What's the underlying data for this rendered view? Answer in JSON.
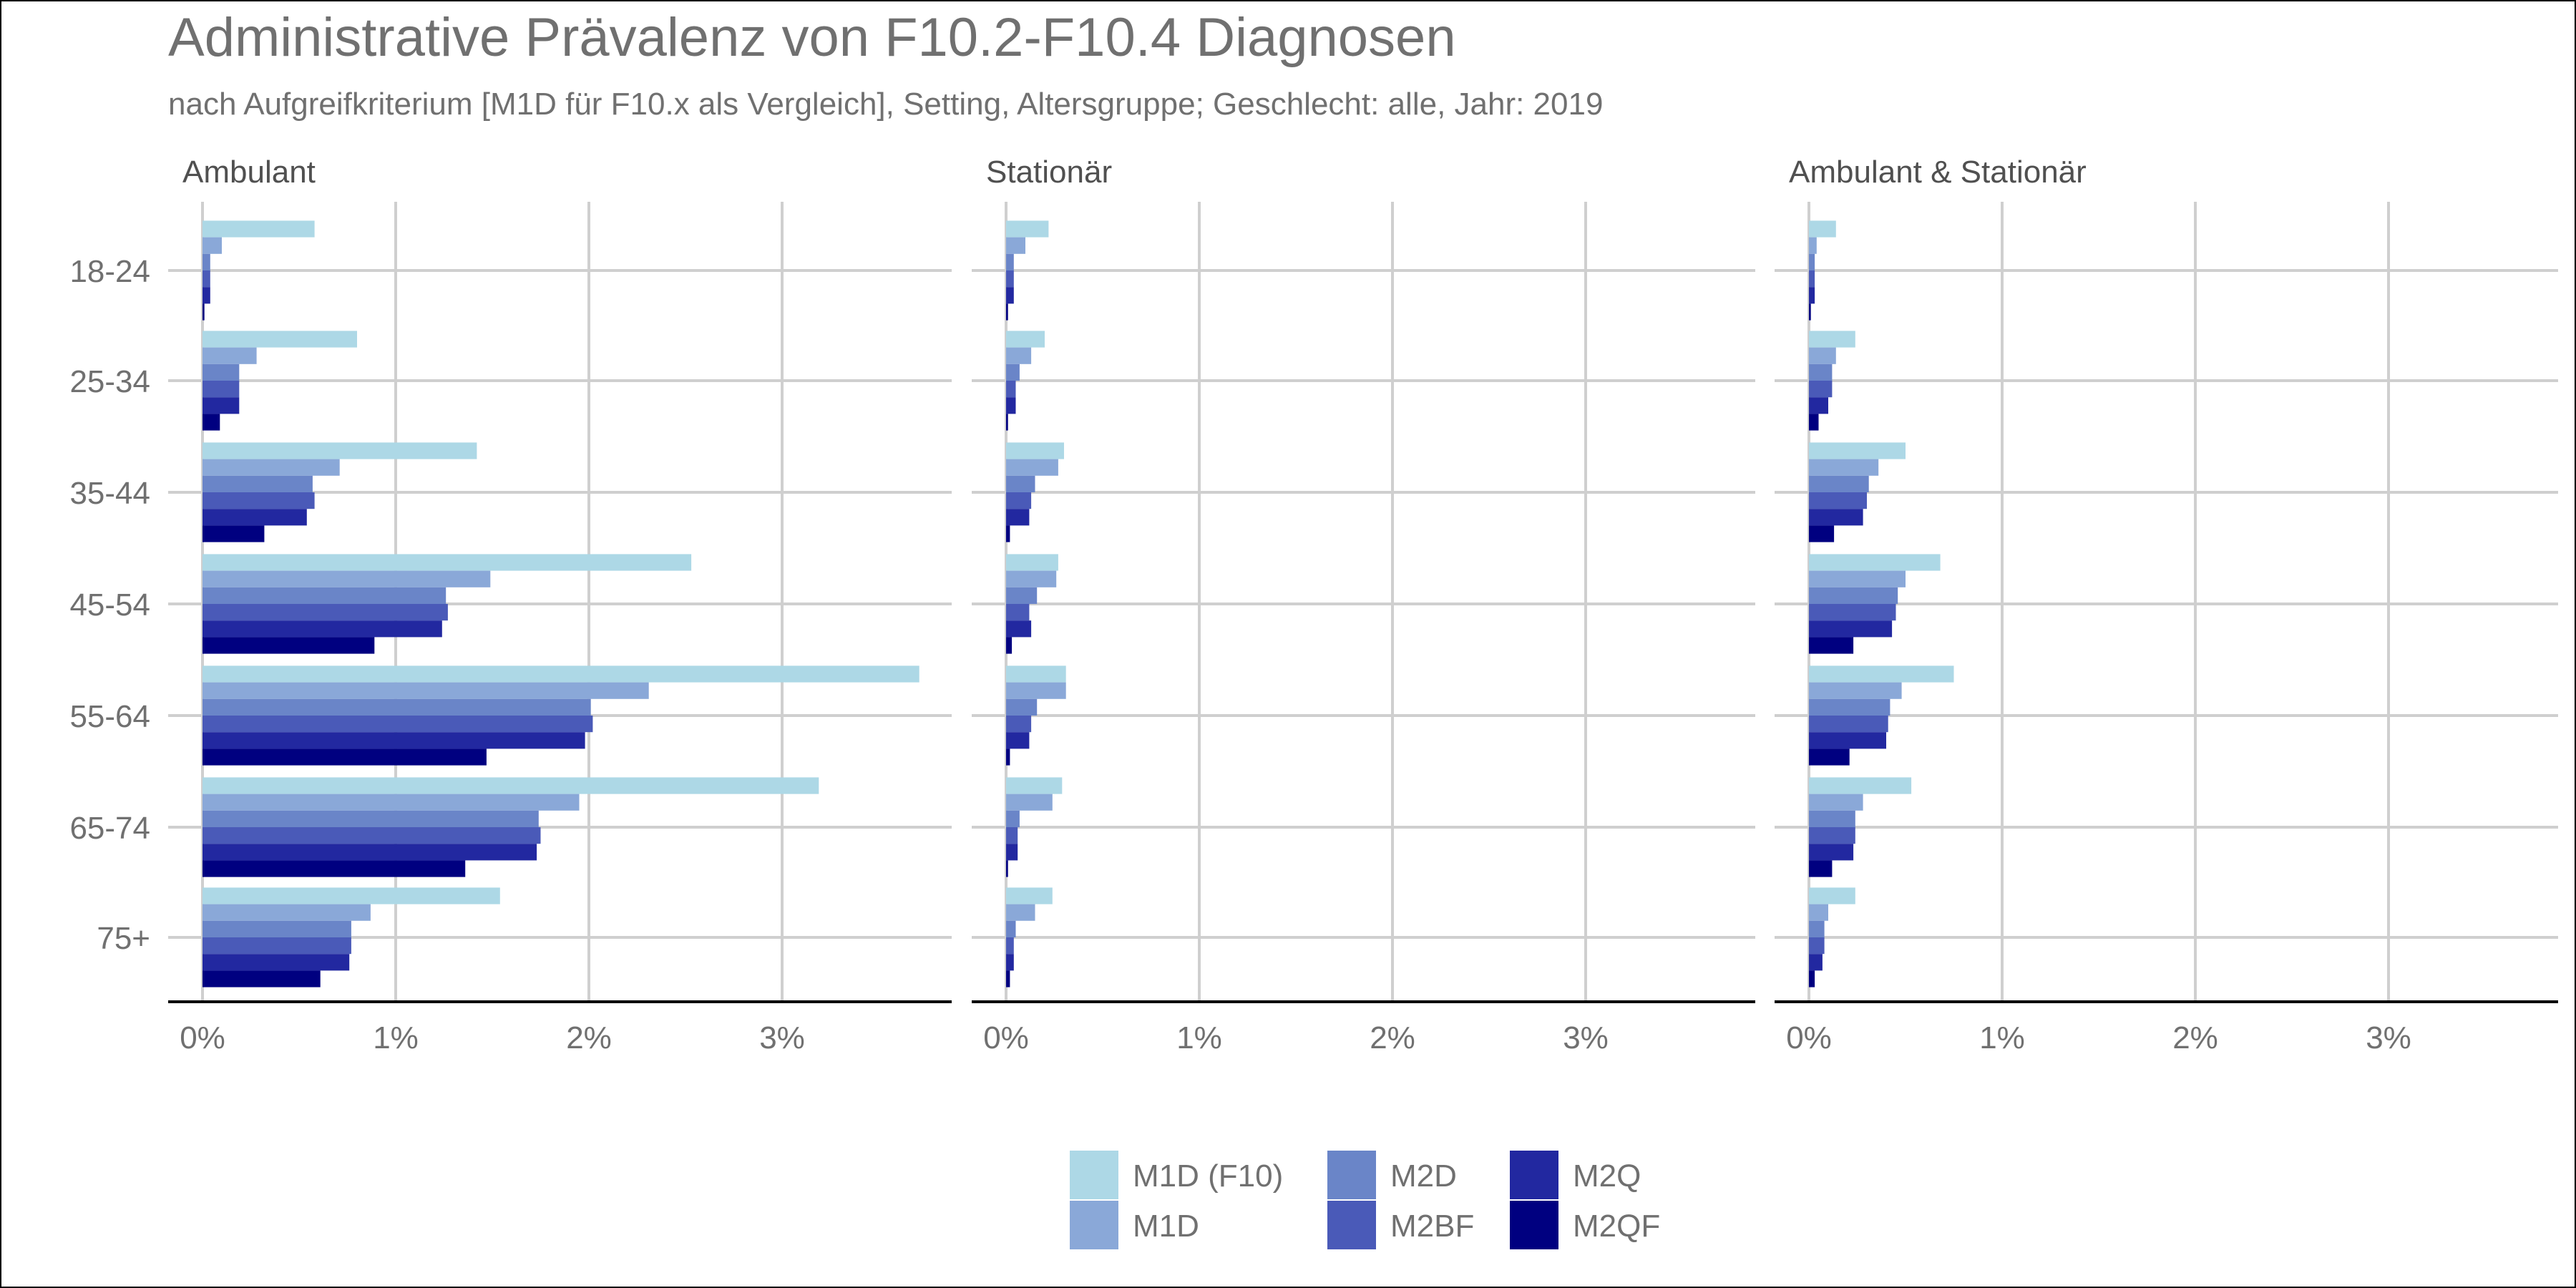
{
  "chart_data": {
    "type": "bar",
    "orientation": "horizontal",
    "title": "Administrative Prävalenz von F10.2-F10.4 Diagnosen",
    "subtitle": "nach Aufgreifkriterium [M1D für F10.x als Vergleich], Setting, Altersgruppe; Geschlecht: alle, Jahr: 2019",
    "x_ticks": [
      "0%",
      "1%",
      "2%",
      "3%"
    ],
    "xlim": [
      0,
      3.9
    ],
    "grid": true,
    "legend_position": "bottom",
    "categories": [
      "18-24",
      "25-34",
      "35-44",
      "45-54",
      "55-64",
      "65-74",
      "75+"
    ],
    "series_names": [
      "M1D (F10)",
      "M1D",
      "M2D",
      "M2BF",
      "M2Q",
      "M2QF"
    ],
    "colors": [
      "#add8e6",
      "#8aa8d8",
      "#6a85c8",
      "#4a5ab8",
      "#2228a0",
      "#000080"
    ],
    "facets": [
      {
        "label": "Ambulant",
        "values": [
          [
            0.58,
            0.1,
            0.04,
            0.04,
            0.04,
            0.01
          ],
          [
            0.8,
            0.28,
            0.19,
            0.19,
            0.19,
            0.09
          ],
          [
            1.42,
            0.71,
            0.57,
            0.58,
            0.54,
            0.32
          ],
          [
            2.53,
            1.49,
            1.26,
            1.27,
            1.24,
            0.89
          ],
          [
            3.71,
            2.31,
            2.01,
            2.02,
            1.98,
            1.47
          ],
          [
            3.19,
            1.95,
            1.74,
            1.75,
            1.73,
            1.36
          ],
          [
            1.54,
            0.87,
            0.77,
            0.77,
            0.76,
            0.61
          ]
        ]
      },
      {
        "label": "Stationär",
        "values": [
          [
            0.22,
            0.1,
            0.04,
            0.04,
            0.04,
            0.01
          ],
          [
            0.2,
            0.13,
            0.07,
            0.05,
            0.05,
            0.01
          ],
          [
            0.3,
            0.27,
            0.15,
            0.13,
            0.12,
            0.02
          ],
          [
            0.27,
            0.26,
            0.16,
            0.12,
            0.13,
            0.03
          ],
          [
            0.31,
            0.31,
            0.16,
            0.13,
            0.12,
            0.02
          ],
          [
            0.29,
            0.24,
            0.07,
            0.06,
            0.06,
            0.01
          ],
          [
            0.24,
            0.15,
            0.05,
            0.04,
            0.04,
            0.02
          ]
        ]
      },
      {
        "label": "Ambulant & Stationär",
        "values": [
          [
            0.14,
            0.04,
            0.03,
            0.03,
            0.03,
            0.01
          ],
          [
            0.24,
            0.14,
            0.12,
            0.12,
            0.1,
            0.05
          ],
          [
            0.5,
            0.36,
            0.31,
            0.3,
            0.28,
            0.13
          ],
          [
            0.68,
            0.5,
            0.46,
            0.45,
            0.43,
            0.23
          ],
          [
            0.75,
            0.48,
            0.42,
            0.41,
            0.4,
            0.21
          ],
          [
            0.53,
            0.28,
            0.24,
            0.24,
            0.23,
            0.12
          ],
          [
            0.24,
            0.1,
            0.08,
            0.08,
            0.07,
            0.03
          ]
        ]
      }
    ]
  }
}
